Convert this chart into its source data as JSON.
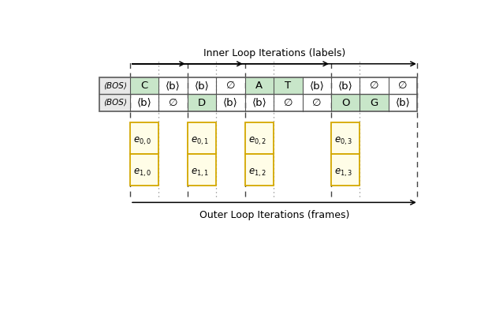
{
  "title_top": "Inner Loop Iterations (labels)",
  "title_bottom": "Outer Loop Iterations (frames)",
  "row1_cells": [
    "⟨BOS⟩",
    "C",
    "⟨b⟩",
    "⟨b⟩",
    "∅",
    "A",
    "T",
    "⟨b⟩",
    "⟨b⟩",
    "∅",
    "∅"
  ],
  "row2_cells": [
    "⟨BOS⟩",
    "⟨b⟩",
    "∅",
    "D",
    "⟨b⟩",
    "⟨b⟩",
    "∅",
    "∅",
    "O",
    "G",
    "⟨b⟩"
  ],
  "row1_green": [
    1,
    5,
    6
  ],
  "row2_green": [
    3,
    8,
    9
  ],
  "emitter_cols": [
    1,
    3,
    5,
    8
  ],
  "emitter_labels_top": [
    "e_{0,0}",
    "e_{0,1}",
    "e_{0,2}",
    "e_{0,3}"
  ],
  "emitter_labels_bot": [
    "e_{1,0}",
    "e_{1,1}",
    "e_{1,2}",
    "e_{1,3}"
  ],
  "green_color": "#c8e6c9",
  "yellow_color": "#fffde7",
  "yellow_border": "#d4a800",
  "bos_color": "#e8e8e8"
}
